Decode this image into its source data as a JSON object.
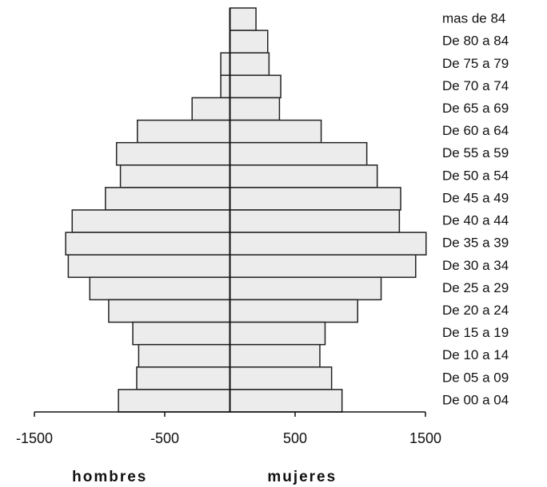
{
  "chart_data": {
    "type": "pyramid",
    "categories": [
      "mas de 84",
      "De 80 a 84",
      "De 75 a 79",
      "De 70 a 74",
      "De 65 a 69",
      "De 60 a 64",
      "De 55 a 59",
      "De 50 a 54",
      "De 45 a 49",
      "De 40 a 44",
      "De 35 a 39",
      "De 30 a 34",
      "De 25 a 29",
      "De 20 a 24",
      "De 15 a 19",
      "De 10 a 14",
      "De 05 a 09",
      "De 00 a 04"
    ],
    "series": [
      {
        "name": "hombres",
        "color": "#ececec",
        "values": [
          0,
          0,
          -70,
          -70,
          -290,
          -710,
          -870,
          -840,
          -955,
          -1210,
          -1260,
          -1240,
          -1075,
          -930,
          -745,
          -700,
          -715,
          -855
        ]
      },
      {
        "name": "mujeres",
        "color": "#ececec",
        "values": [
          200,
          290,
          300,
          390,
          380,
          700,
          1050,
          1130,
          1310,
          1300,
          1505,
          1425,
          1160,
          980,
          730,
          690,
          780,
          860
        ]
      }
    ],
    "xlim": [
      -1500,
      1500
    ],
    "xticks": [
      -1500,
      -500,
      500,
      1500
    ]
  }
}
